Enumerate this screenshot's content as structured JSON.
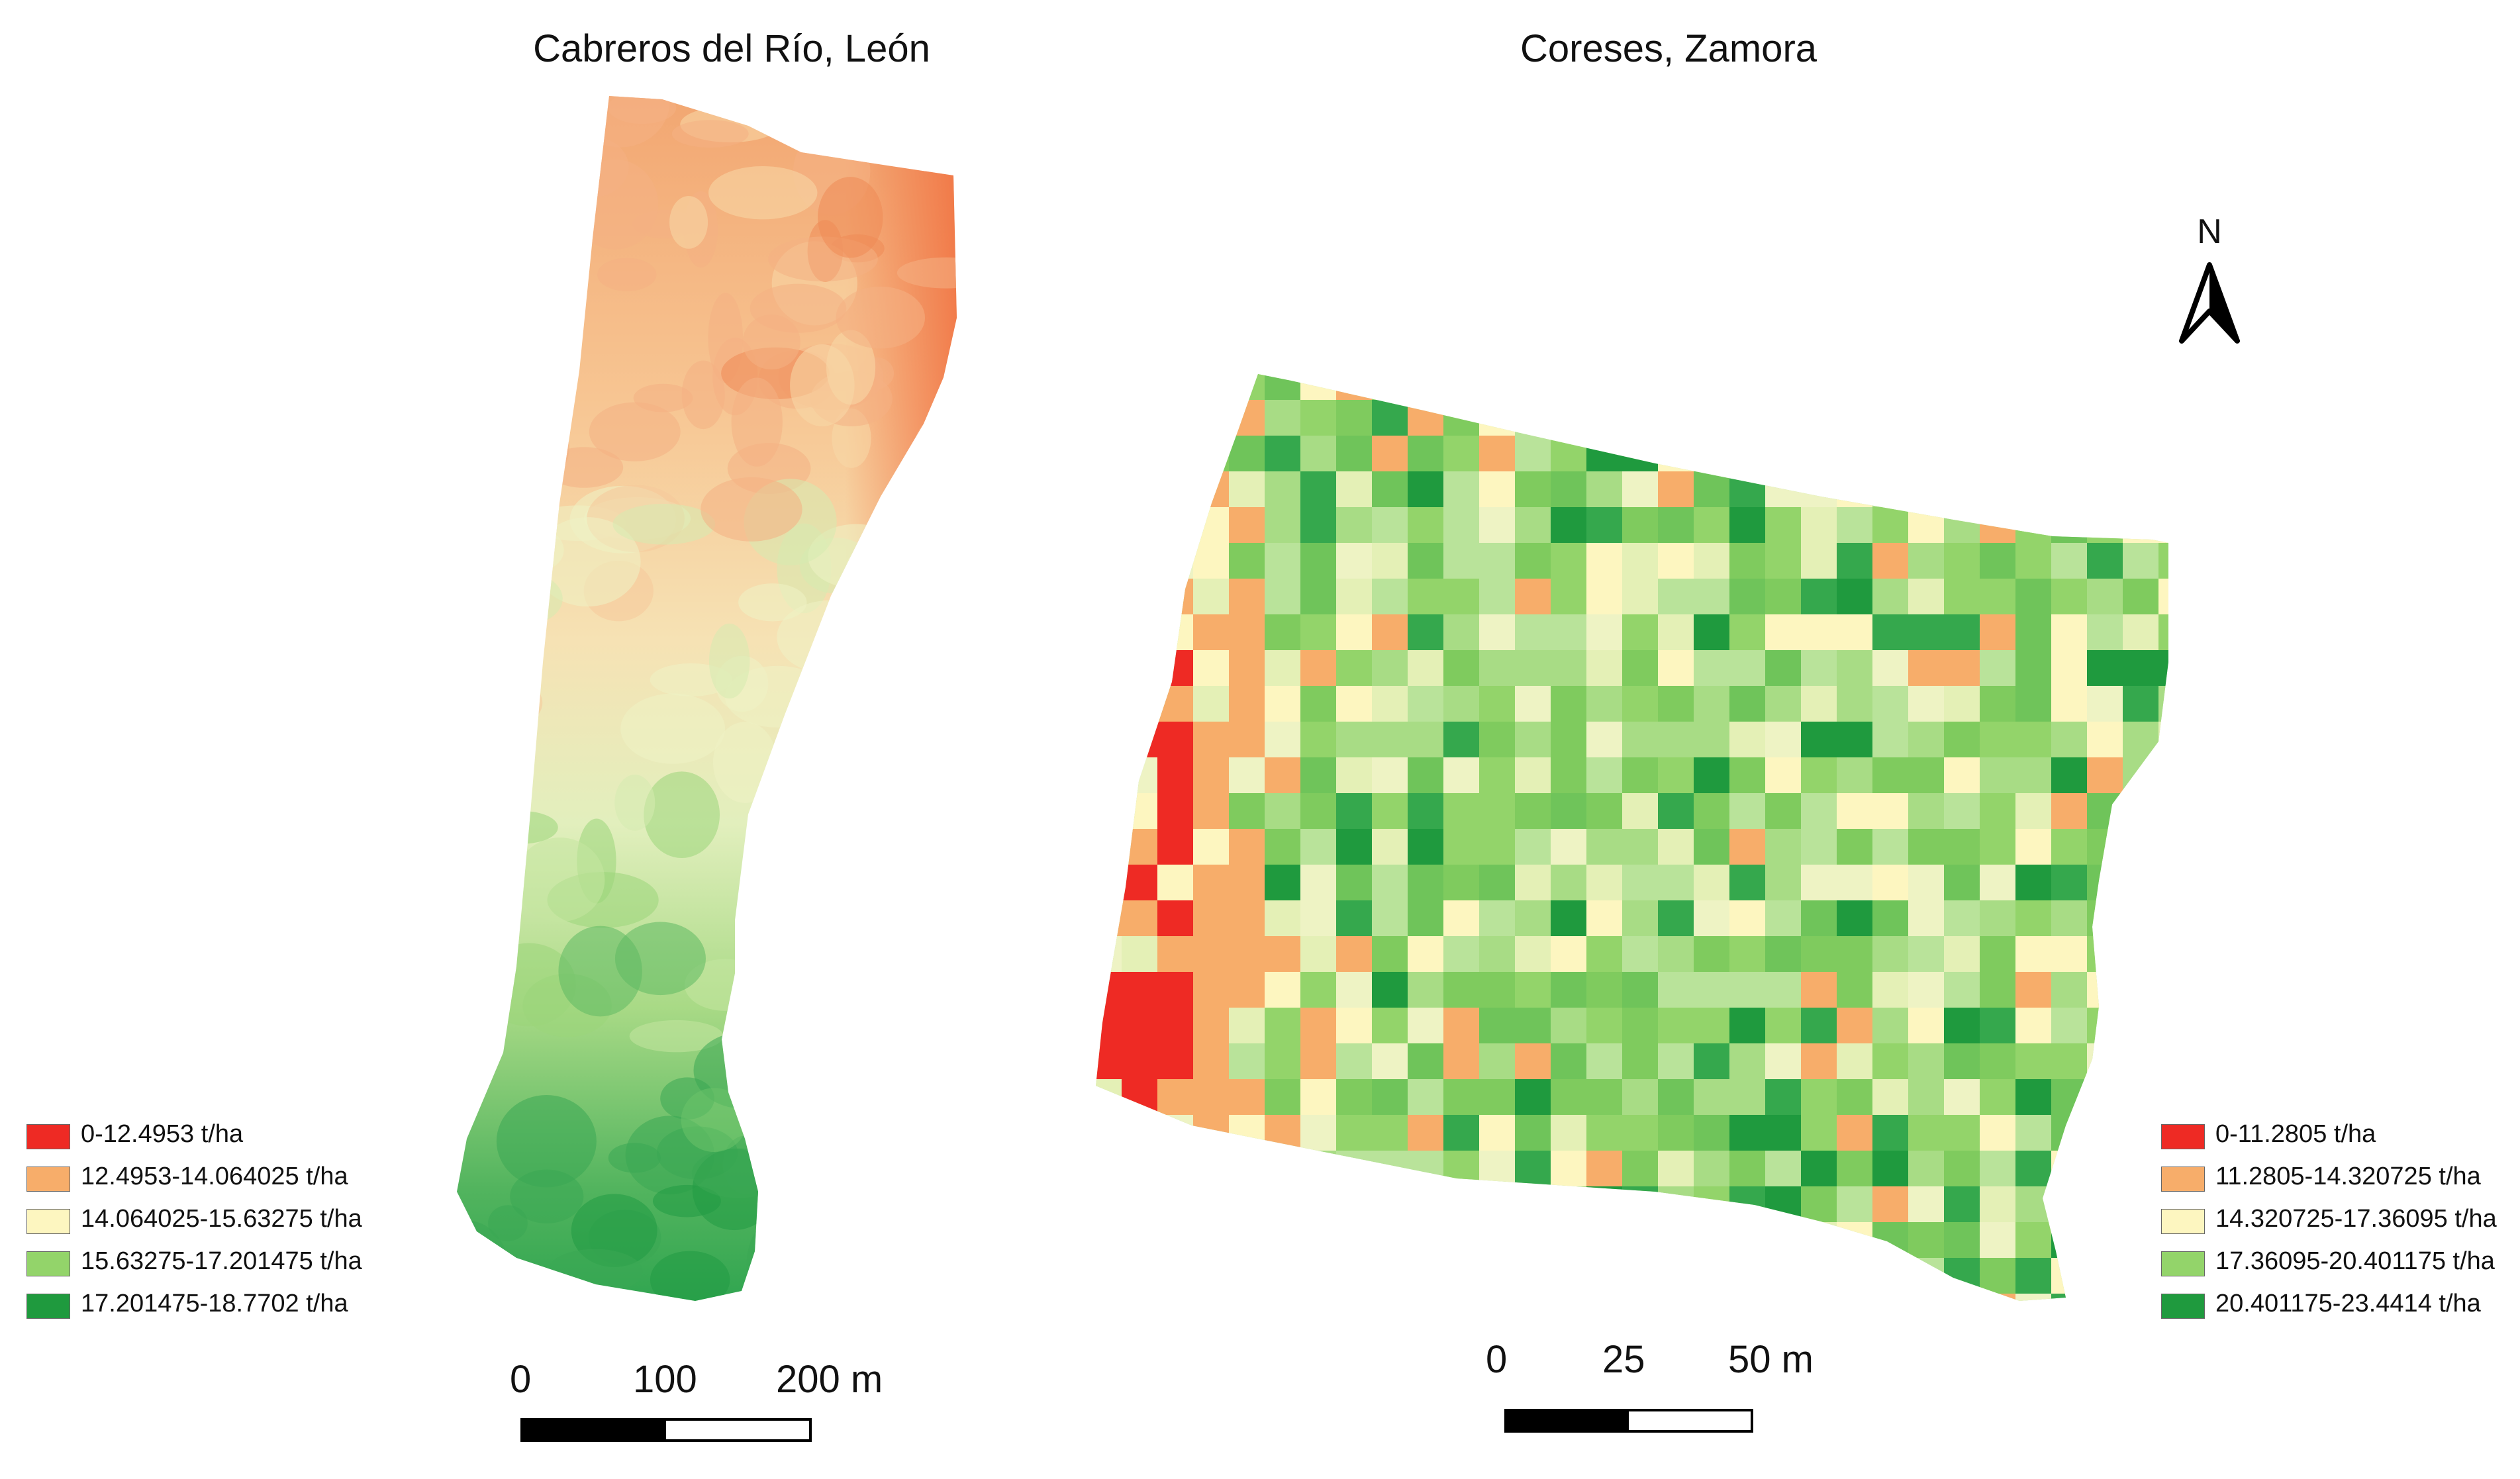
{
  "maps": {
    "left": {
      "title": "Cabreros del Río, León"
    },
    "right": {
      "title": "Coreses, Zamora"
    }
  },
  "legend_left": [
    {
      "label": "0-12.4953 t/ha",
      "color": "#ee2a24"
    },
    {
      "label": "12.4953-14.064025  t/ha",
      "color": "#f7ad6a"
    },
    {
      "label": "14.064025-15.63275  t/ha",
      "color": "#fdf6c0"
    },
    {
      "label": "15.63275-17.201475  t/ha",
      "color": "#93d46a"
    },
    {
      "label": "17.201475-18.7702  t/ha",
      "color": "#1f9a3e"
    }
  ],
  "legend_right": [
    {
      "label": "0-11.2805 t/ha",
      "color": "#ee2a24"
    },
    {
      "label": "11.2805-14.320725 t/ha",
      "color": "#f7ad6a"
    },
    {
      "label": "14.320725-17.36095 t/ha",
      "color": "#fdf6c0"
    },
    {
      "label": "17.36095-20.401175 t/ha",
      "color": "#93d46a"
    },
    {
      "label": "20.401175-23.4414 t/ha",
      "color": "#1f9a3e"
    }
  ],
  "scale_left": {
    "labels": [
      "0",
      "100",
      "200 m"
    ]
  },
  "scale_right": {
    "labels": [
      "0",
      "25",
      "50 m"
    ]
  },
  "north": {
    "label": "N"
  }
}
